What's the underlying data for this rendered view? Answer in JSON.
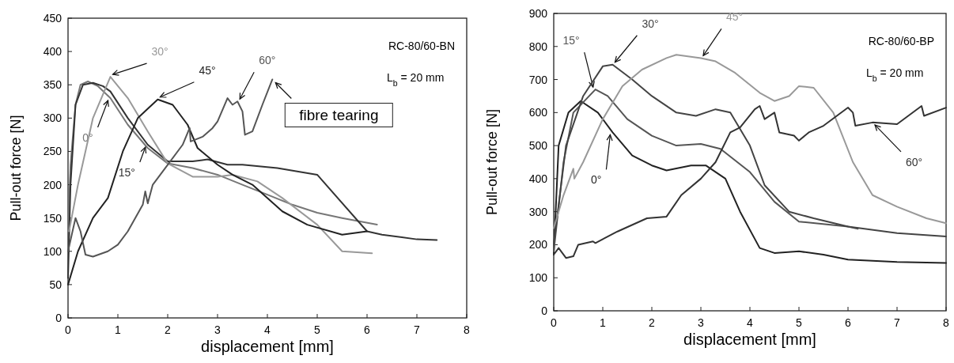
{
  "chart_data": [
    {
      "type": "line",
      "title": "RC-80/60-BN",
      "xlabel": "displacement [mm]",
      "ylabel": "Pull-out force [N]",
      "xlim": [
        0,
        8
      ],
      "ylim": [
        0,
        450
      ],
      "xticks": [
        0,
        1,
        2,
        3,
        4,
        5,
        6,
        7,
        8
      ],
      "yticks": [
        0,
        50,
        100,
        150,
        200,
        250,
        300,
        350,
        400,
        450
      ],
      "grid": false,
      "marker": "none",
      "line_style": "solid",
      "annotations": [
        "L$_{b}$ = 20 mm",
        {
          "text": "fibre tearing",
          "x": 4.1,
          "y": 358
        }
      ],
      "series": [
        {
          "name": "0°",
          "color": "#777777",
          "x": [
            0,
            0.05,
            0.15,
            0.25,
            0.4,
            0.6,
            0.85,
            1.2,
            1.6,
            2,
            2.5,
            3,
            3.5,
            4,
            4.5,
            5,
            5.5,
            6.2
          ],
          "values": [
            130,
            230,
            320,
            350,
            355,
            348,
            330,
            290,
            255,
            232,
            225,
            215,
            200,
            185,
            170,
            158,
            150,
            140
          ]
        },
        {
          "name": "15°",
          "color": "#333333",
          "x": [
            0,
            0.05,
            0.15,
            0.3,
            0.5,
            0.7,
            0.85,
            1.2,
            1.6,
            2,
            2.5,
            2.8,
            3.2,
            3.5,
            4.2,
            5,
            6,
            6.3,
            7,
            7.4
          ],
          "values": [
            60,
            200,
            320,
            350,
            353,
            348,
            340,
            300,
            260,
            235,
            235,
            238,
            230,
            230,
            225,
            215,
            130,
            125,
            118,
            117
          ]
        },
        {
          "name": "30°",
          "color": "#999999",
          "x": [
            0.02,
            0.2,
            0.5,
            0.85,
            1.2,
            1.6,
            2,
            2.5,
            3,
            3.3,
            3.8,
            4.3,
            5,
            5.5,
            6.1
          ],
          "values": [
            130,
            200,
            300,
            362,
            330,
            280,
            232,
            212,
            212,
            215,
            205,
            180,
            140,
            100,
            97
          ]
        },
        {
          "name": "45°",
          "color": "#222222",
          "x": [
            0,
            0.2,
            0.5,
            0.8,
            1.1,
            1.4,
            1.8,
            2.1,
            2.4,
            2.6,
            3,
            3.3,
            3.7,
            4.3,
            4.8,
            5.5,
            6
          ],
          "values": [
            50,
            100,
            150,
            180,
            250,
            300,
            328,
            320,
            290,
            255,
            230,
            215,
            200,
            160,
            140,
            125,
            130
          ]
        },
        {
          "name": "60°",
          "color": "#555555",
          "x": [
            0,
            0.15,
            0.25,
            0.35,
            0.5,
            0.8,
            1,
            1.2,
            1.5,
            1.55,
            1.6,
            1.7,
            2,
            2.3,
            2.44,
            2.46,
            2.7,
            2.9,
            3,
            3.2,
            3.3,
            3.4,
            3.5,
            3.55,
            3.7,
            3.9,
            4.1
          ],
          "values": [
            100,
            150,
            130,
            95,
            92,
            100,
            110,
            130,
            170,
            190,
            172,
            200,
            230,
            260,
            285,
            265,
            272,
            285,
            295,
            330,
            320,
            325,
            310,
            275,
            280,
            320,
            358
          ]
        }
      ]
    },
    {
      "type": "line",
      "title": "RC-80/60-BP",
      "xlabel": "displacement [mm]",
      "ylabel": "Pull-out force [N]",
      "xlim": [
        0,
        8
      ],
      "ylim": [
        0,
        900
      ],
      "xticks": [
        0,
        1,
        2,
        3,
        4,
        5,
        6,
        7,
        8
      ],
      "yticks": [
        0,
        100,
        200,
        300,
        400,
        500,
        600,
        700,
        800,
        900
      ],
      "grid": false,
      "marker": "none",
      "line_style": "solid",
      "annotations": [
        "L$_{b}$ = 20 mm"
      ],
      "series": [
        {
          "name": "0°",
          "color": "#222222",
          "x": [
            0,
            0.1,
            0.3,
            0.55,
            0.9,
            1.2,
            1.6,
            2,
            2.3,
            2.8,
            3.1,
            3.5,
            3.8,
            4.2,
            4.5,
            5,
            5.5,
            6,
            7,
            8
          ],
          "values": [
            170,
            500,
            600,
            635,
            600,
            540,
            470,
            440,
            425,
            440,
            440,
            400,
            300,
            190,
            175,
            180,
            170,
            155,
            148,
            145
          ]
        },
        {
          "name": "15°",
          "color": "#555555",
          "x": [
            0,
            0.2,
            0.4,
            0.85,
            1.1,
            1.5,
            2,
            2.5,
            3,
            3.4,
            4,
            4.5,
            5,
            6,
            6.2
          ],
          "values": [
            180,
            450,
            600,
            670,
            650,
            580,
            530,
            500,
            505,
            490,
            420,
            330,
            270,
            255,
            248
          ]
        },
        {
          "name": "30°",
          "color": "#444444",
          "x": [
            0,
            0.25,
            0.6,
            1,
            1.2,
            1.6,
            2,
            2.5,
            2.9,
            3.3,
            3.6,
            4,
            4.3,
            4.8,
            5.3,
            6,
            7,
            8
          ],
          "values": [
            200,
            500,
            650,
            740,
            745,
            700,
            650,
            600,
            590,
            610,
            600,
            500,
            380,
            300,
            280,
            255,
            235,
            225
          ]
        },
        {
          "name": "45°",
          "color": "#999999",
          "x": [
            0,
            0.2,
            0.4,
            0.42,
            0.6,
            1,
            1.4,
            1.8,
            2.3,
            2.5,
            3,
            3.3,
            3.7,
            4.2,
            4.5,
            4.8,
            5,
            5.3,
            5.7,
            6.1,
            6.5,
            7,
            7.6,
            8
          ],
          "values": [
            250,
            350,
            430,
            400,
            450,
            580,
            680,
            730,
            765,
            775,
            765,
            755,
            720,
            660,
            635,
            650,
            680,
            675,
            600,
            450,
            350,
            315,
            280,
            265
          ]
        },
        {
          "name": "60°",
          "color": "#333333",
          "x": [
            0,
            0.1,
            0.25,
            0.4,
            0.5,
            0.8,
            0.85,
            1.3,
            1.9,
            2.3,
            2.6,
            3,
            3.3,
            3.6,
            3.8,
            4.1,
            4.2,
            4.3,
            4.5,
            4.6,
            4.9,
            5,
            5.2,
            5.5,
            6,
            6.1,
            6.15,
            6.5,
            7,
            7.5,
            7.55,
            8
          ],
          "values": [
            170,
            190,
            160,
            165,
            200,
            210,
            205,
            240,
            280,
            285,
            350,
            400,
            450,
            540,
            555,
            610,
            620,
            580,
            600,
            540,
            530,
            515,
            540,
            560,
            615,
            600,
            560,
            570,
            565,
            620,
            590,
            615
          ]
        }
      ]
    }
  ]
}
